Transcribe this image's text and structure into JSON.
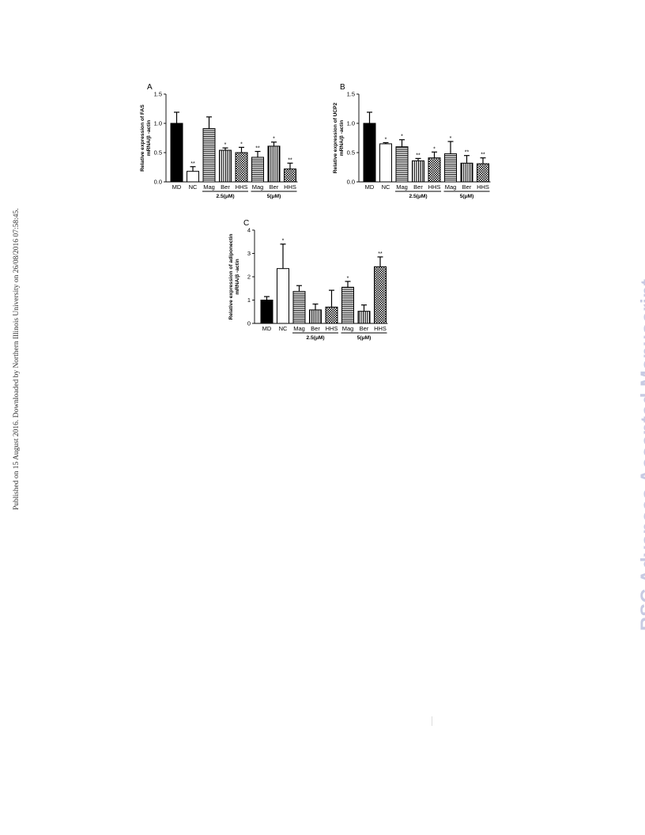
{
  "side_note": "Published on 15 August 2016. Downloaded by Northern Illinois University on 26/08/2016 07:58:45.",
  "watermark": "RSC Advances Accepted Manuscript",
  "chart_data": [
    {
      "panel": "A",
      "type": "bar",
      "categories": [
        "MD",
        "NC",
        "Mag",
        "Ber",
        "HHS",
        "Mag",
        "Ber",
        "HHS"
      ],
      "values": [
        1.0,
        0.18,
        0.91,
        0.54,
        0.5,
        0.42,
        0.61,
        0.22
      ],
      "errors": [
        0.19,
        0.08,
        0.2,
        0.04,
        0.09,
        0.1,
        0.07,
        0.1
      ],
      "significance": [
        "",
        "**",
        "",
        "*",
        "*",
        "**",
        "*",
        "**"
      ],
      "patterns": [
        "solid",
        "white",
        "hlines",
        "vlines",
        "checker",
        "hlines",
        "vlines",
        "checker"
      ],
      "ylabel_line1": "Relative expression of FAS",
      "ylabel_line2": "mRNA/β -actin",
      "ylim": [
        0,
        1.5
      ],
      "yticks": [
        "0.0",
        "0.5",
        "1.0",
        "1.5"
      ],
      "groups": [
        {
          "label": "2.5(μM)",
          "from": 2,
          "to": 4
        },
        {
          "label": "5(μM)",
          "from": 5,
          "to": 7
        }
      ]
    },
    {
      "panel": "B",
      "type": "bar",
      "categories": [
        "MD",
        "NC",
        "Mag",
        "Ber",
        "HHS",
        "Mag",
        "Ber",
        "HHS"
      ],
      "values": [
        1.0,
        0.65,
        0.6,
        0.36,
        0.41,
        0.48,
        0.32,
        0.31
      ],
      "errors": [
        0.19,
        0.02,
        0.12,
        0.04,
        0.1,
        0.21,
        0.13,
        0.1
      ],
      "significance": [
        "",
        "*",
        "*",
        "**",
        "*",
        "*",
        "**",
        "**"
      ],
      "patterns": [
        "solid",
        "white",
        "hlines",
        "vlines",
        "checker",
        "hlines",
        "vlines",
        "checker"
      ],
      "ylabel_line1": "Relative expression of UCP2",
      "ylabel_line2": "mRNA/β -actin",
      "ylim": [
        0,
        1.5
      ],
      "yticks": [
        "0.0",
        "0.5",
        "1.0",
        "1.5"
      ],
      "groups": [
        {
          "label": "2.5(μM)",
          "from": 2,
          "to": 4
        },
        {
          "label": "5(μM)",
          "from": 5,
          "to": 7
        }
      ]
    },
    {
      "panel": "C",
      "type": "bar",
      "categories": [
        "MD",
        "NC",
        "Mag",
        "Ber",
        "HHS",
        "Mag",
        "Ber",
        "HHS"
      ],
      "values": [
        1.0,
        2.35,
        1.37,
        0.58,
        0.7,
        1.55,
        0.52,
        2.43
      ],
      "errors": [
        0.15,
        1.05,
        0.25,
        0.25,
        0.72,
        0.25,
        0.27,
        0.42
      ],
      "significance": [
        "",
        "*",
        "",
        "",
        "",
        "*",
        "",
        "**"
      ],
      "patterns": [
        "solid",
        "white",
        "hlines",
        "vlines",
        "checker",
        "hlines",
        "vlines",
        "checker"
      ],
      "ylabel_line1": "Relative expression of adiponectin",
      "ylabel_line2": "mRNA/β -actin",
      "ylim": [
        0,
        4
      ],
      "yticks": [
        "0",
        "1",
        "2",
        "3",
        "4"
      ],
      "groups": [
        {
          "label": "2.5(μM)",
          "from": 2,
          "to": 4
        },
        {
          "label": "5(μM)",
          "from": 5,
          "to": 7
        }
      ]
    }
  ]
}
